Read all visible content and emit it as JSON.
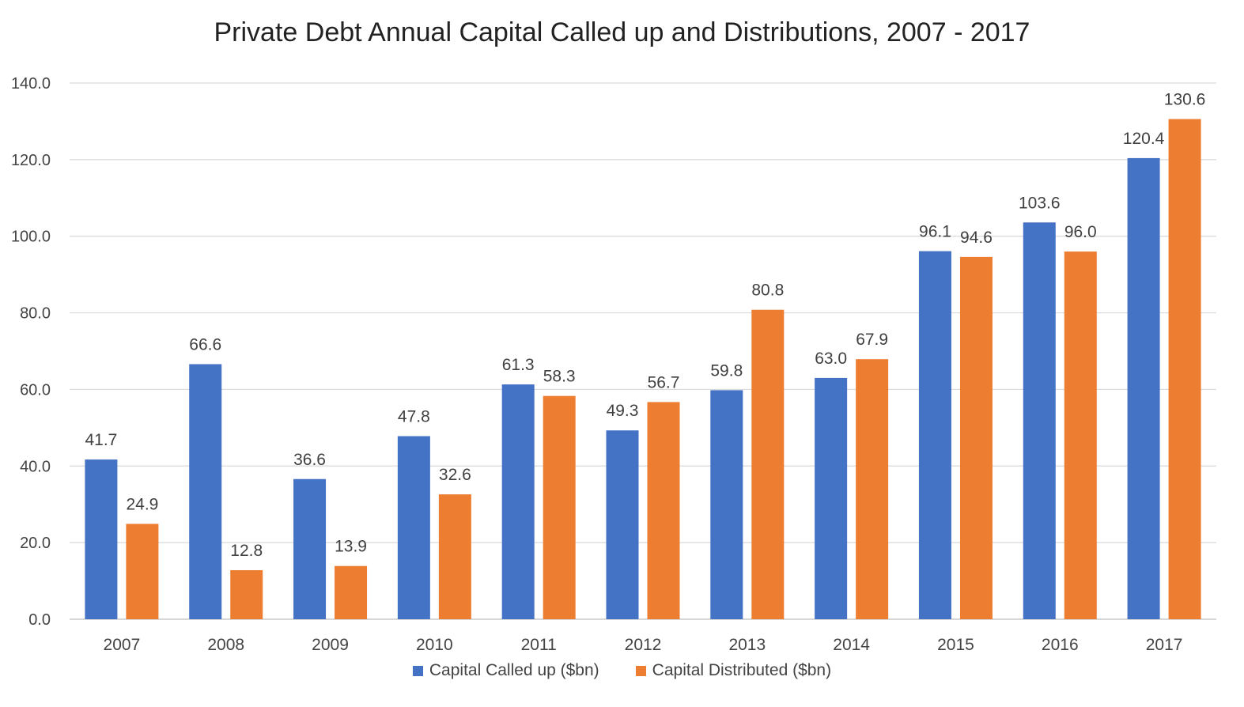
{
  "chart_data": {
    "type": "bar",
    "title": "Private Debt Annual Capital Called up and Distributions, 2007 - 2017",
    "xlabel": "",
    "ylabel": "",
    "categories": [
      "2007",
      "2008",
      "2009",
      "2010",
      "2011",
      "2012",
      "2013",
      "2014",
      "2015",
      "2016",
      "2017"
    ],
    "series": [
      {
        "name": "Capital Called up ($bn)",
        "color": "#4472C4",
        "values": [
          41.7,
          66.6,
          36.6,
          47.8,
          61.3,
          49.3,
          59.8,
          63.0,
          96.1,
          103.6,
          120.4
        ],
        "labels": [
          "41.7",
          "66.6",
          "36.6",
          "47.8",
          "61.3",
          "49.3",
          "59.8",
          "63.0",
          "96.1",
          "103.6",
          "120.4"
        ]
      },
      {
        "name": "Capital Distributed ($bn)",
        "color": "#ED7D31",
        "values": [
          24.9,
          12.8,
          13.9,
          32.6,
          58.3,
          56.7,
          80.8,
          67.9,
          94.6,
          96.0,
          130.6
        ],
        "labels": [
          "24.9",
          "12.8",
          "13.9",
          "32.6",
          "58.3",
          "56.7",
          "80.8",
          "67.9",
          "94.6",
          "96.0",
          "130.6"
        ]
      }
    ],
    "ylim": [
      0,
      140
    ],
    "yticks": [
      "0.0",
      "20.0",
      "40.0",
      "60.0",
      "80.0",
      "100.0",
      "120.0",
      "140.0"
    ],
    "grid": true,
    "legend": "bottom"
  }
}
